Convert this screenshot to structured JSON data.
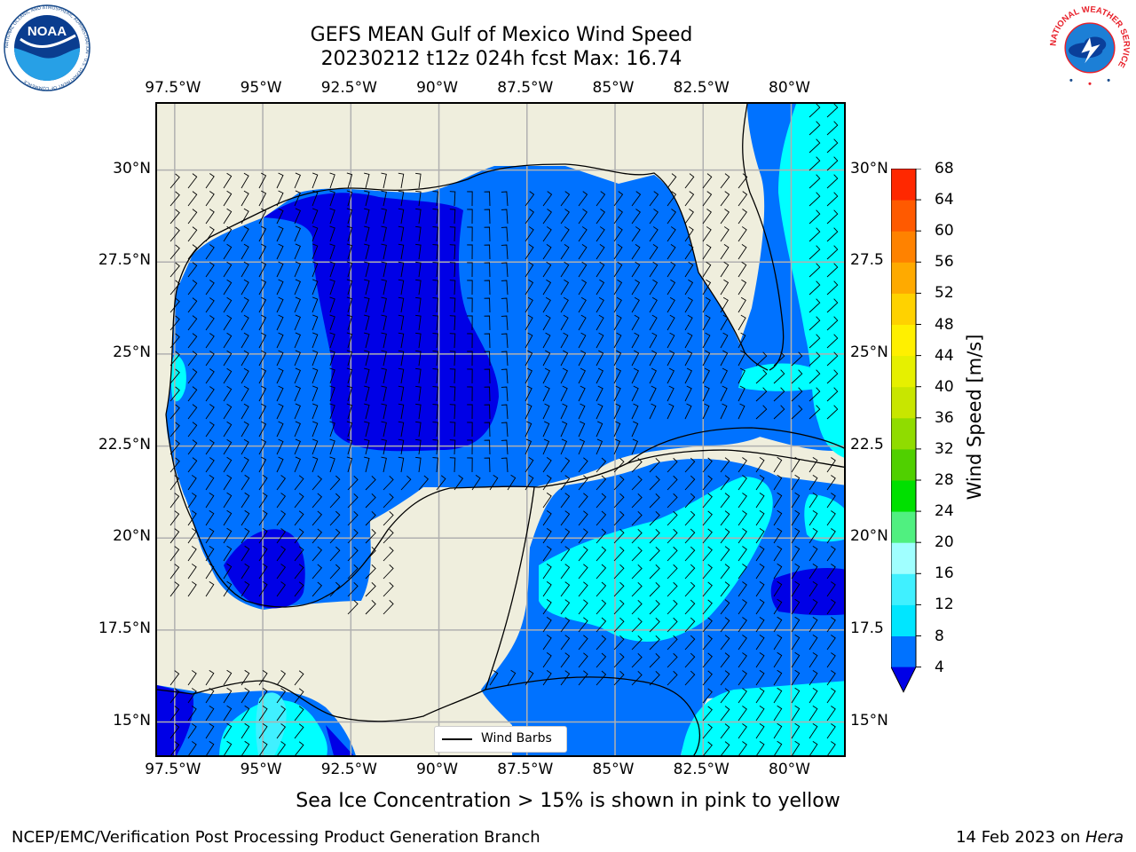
{
  "title": {
    "line1": "GEFS MEAN Gulf of Mexico Wind Speed",
    "line2": "20230212 t12z 024h fcst   Max: 16.74"
  },
  "axes": {
    "lon_labels": [
      "97.5°W",
      "95°W",
      "92.5°W",
      "90°W",
      "87.5°W",
      "85°W",
      "82.5°W",
      "80°W"
    ],
    "lat_labels_left": [
      "30°N",
      "27.5°N",
      "25°N",
      "22.5°N",
      "20°N",
      "17.5°N",
      "15°N"
    ],
    "lat_labels_right": [
      "30°N",
      "27.5",
      "25°N",
      "22.5",
      "20°N",
      "17.5",
      "15°N"
    ],
    "lon_range": [
      -98,
      -78.4
    ],
    "lat_range": [
      14,
      31.8
    ]
  },
  "legend": {
    "wind_barbs_label": "Wind Barbs"
  },
  "colorbar": {
    "label": "Wind Speed [m/s]",
    "ticks": [
      "4",
      "8",
      "12",
      "16",
      "20",
      "24",
      "28",
      "32",
      "36",
      "40",
      "44",
      "48",
      "52",
      "56",
      "60",
      "64",
      "68"
    ],
    "colors": [
      "#0072ff",
      "#00e6ff",
      "#40f0ff",
      "#a0ffff",
      "#50f080",
      "#00e000",
      "#50d000",
      "#90dc00",
      "#c8e600",
      "#e6f000",
      "#fff000",
      "#ffd200",
      "#ffaa00",
      "#ff8200",
      "#ff5a00",
      "#ff2800"
    ],
    "under_color": "#0000e6",
    "extend": "min"
  },
  "colors": {
    "land": "#efeedd",
    "wind_4_8": "#0072ff",
    "wind_under_4": "#0000e6",
    "wind_8_12": "#00ffff",
    "wind_12_16": "#40f0ff",
    "wind_16_20": "#a0ffff",
    "grid": "#b0b0b0"
  },
  "footer": {
    "sea_ice_note": "Sea Ice Concentration > 15% is shown in pink to yellow",
    "left_credit": "NCEP/EMC/Verification Post Processing Product Generation Branch",
    "date_text": "14 Feb 2023 on ",
    "machine": "Hera"
  },
  "logos": {
    "noaa_text": "NOAA",
    "noaa_ring_text": "NATIONAL OCEANIC AND ATMOSPHERIC ADMINISTRATION · U.S. DEPARTMENT OF COMMERCE",
    "nws_ring_text": "NATIONAL WEATHER SERVICE"
  }
}
